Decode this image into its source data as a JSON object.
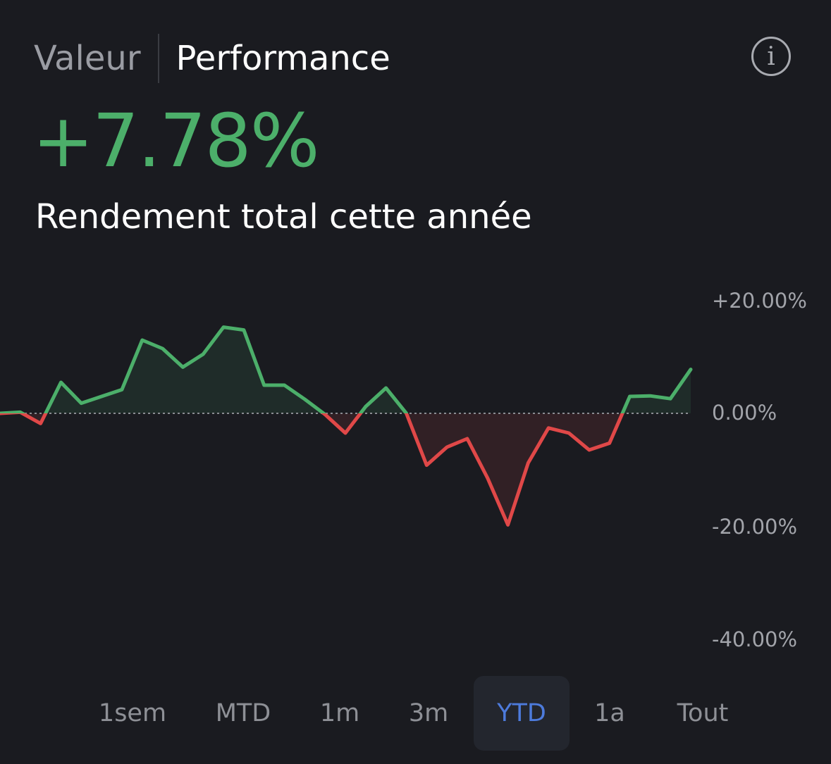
{
  "header": {
    "tabs": [
      {
        "label": "Valeur",
        "active": false
      },
      {
        "label": "Performance",
        "active": true
      }
    ],
    "info_icon": "info-icon",
    "info_glyph": "i"
  },
  "summary": {
    "value": "+7.78%",
    "label": "Rendement total cette année",
    "value_color": "#4caf6a"
  },
  "chart_data": {
    "type": "line",
    "title": "",
    "y_ticks": [
      "+20.00%",
      "0.00%",
      "-20.00%",
      "-40.00%"
    ],
    "ylim": [
      -40,
      20
    ],
    "baseline": 0,
    "values": [
      0.0,
      0.2,
      -1.8,
      5.5,
      1.8,
      3.0,
      4.2,
      13.0,
      11.5,
      8.2,
      10.5,
      15.3,
      14.8,
      5.0,
      5.0,
      2.5,
      -0.2,
      -3.5,
      1.2,
      4.5,
      0.0,
      -9.2,
      -6.0,
      -4.5,
      -11.5,
      -19.8,
      -8.8,
      -2.6,
      -3.5,
      -6.5,
      -5.3,
      3.0,
      3.1,
      2.6,
      7.8
    ],
    "positive_color": "#4caf6a",
    "negative_color": "#e04848"
  },
  "periods": {
    "items": [
      "1sem",
      "MTD",
      "1m",
      "3m",
      "YTD",
      "1a",
      "Tout"
    ],
    "selected": "YTD"
  }
}
